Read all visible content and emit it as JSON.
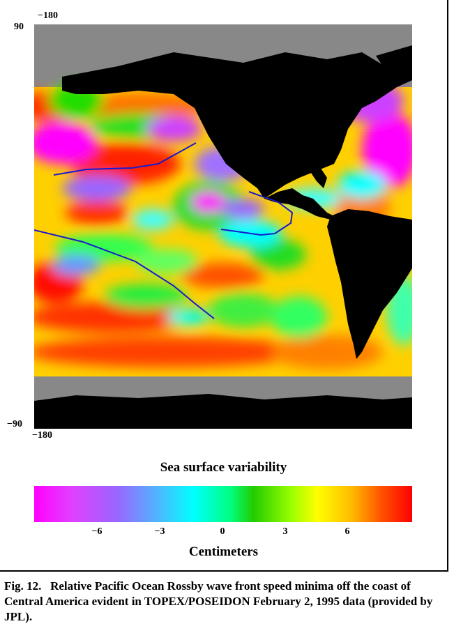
{
  "map": {
    "lat_top_label": "90",
    "lat_bottom_label": "−90",
    "lon_top_label": "−180",
    "lon_bottom_label": "−180",
    "colors": {
      "land": "#000000",
      "polar_gray": "#888888",
      "wave_front_line": "#1a1acc"
    }
  },
  "legend": {
    "title": "Sea surface variability",
    "unit_label": "Centimeters",
    "ticks": [
      "−6",
      "−3",
      "0",
      "3",
      "6"
    ]
  },
  "caption": {
    "text": "Fig. 12.   Relative Pacific Ocean Rossby wave front speed minima off the coast of Central America evident in TOPEX/POSEIDON February 2, 1995 data (provided by JPL)."
  }
}
